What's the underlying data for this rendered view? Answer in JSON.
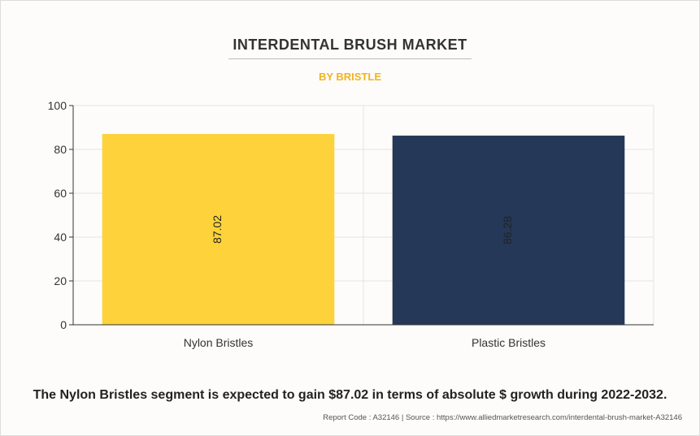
{
  "header": {
    "title": "INTERDENTAL BRUSH MARKET",
    "subtitle": "BY BRISTLE"
  },
  "chart_data": {
    "type": "bar",
    "categories": [
      "Nylon Bristles",
      "Plastic Bristles"
    ],
    "values": [
      87.02,
      86.28
    ],
    "colors": [
      "#fdd23a",
      "#253858"
    ],
    "data_labels": [
      "87.02",
      "86.28"
    ],
    "ylim": [
      0,
      100
    ],
    "yticks": [
      "0",
      "20",
      "40",
      "60",
      "80",
      "100"
    ],
    "grid": true
  },
  "footer": {
    "note": "The Nylon Bristles segment is expected to gain $87.02 in terms of absolute $ growth during 2022-2032.",
    "source": "Report Code : A32146  |  Source : https://www.alliedmarketresearch.com/interdental-brush-market-A32146"
  }
}
